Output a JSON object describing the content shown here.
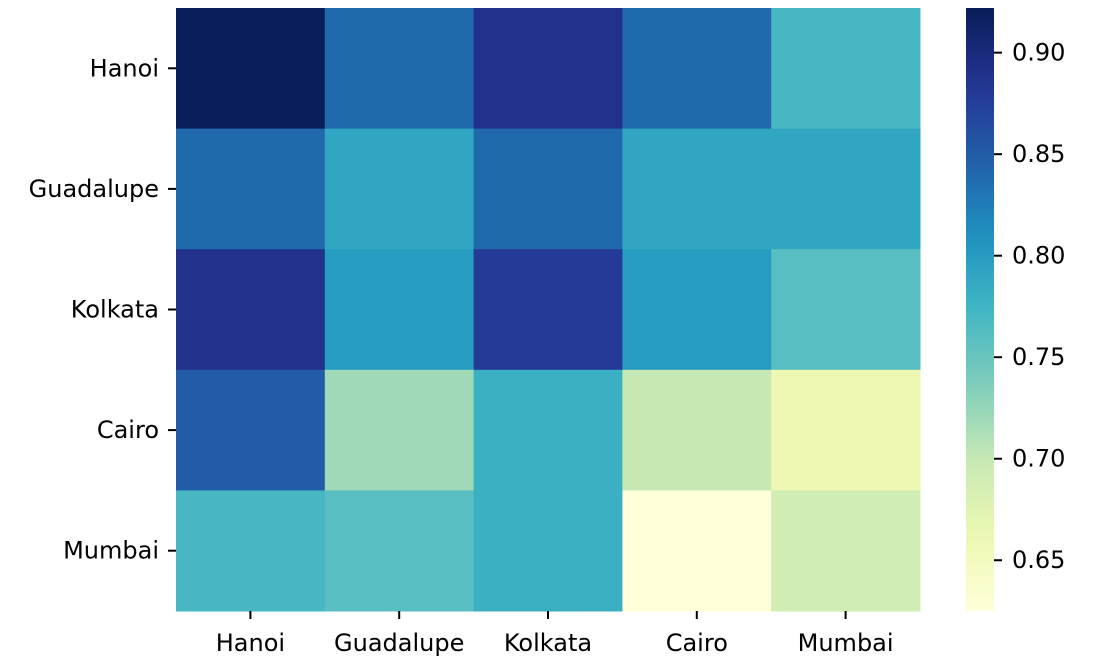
{
  "chart_data": {
    "type": "heatmap",
    "title": "",
    "xlabel": "",
    "ylabel": "",
    "x_categories": [
      "Hanoi",
      "Guadalupe",
      "Kolkata",
      "Cairo",
      "Mumbai"
    ],
    "y_categories": [
      "Hanoi",
      "Guadalupe",
      "Kolkata",
      "Cairo",
      "Mumbai"
    ],
    "values": [
      [
        0.92,
        0.84,
        0.89,
        0.84,
        0.77
      ],
      [
        0.84,
        0.79,
        0.84,
        0.79,
        0.79
      ],
      [
        0.89,
        0.8,
        0.88,
        0.8,
        0.76
      ],
      [
        0.85,
        0.72,
        0.78,
        0.7,
        0.66
      ],
      [
        0.77,
        0.76,
        0.78,
        0.625,
        0.69
      ]
    ],
    "colormap": "YlGnBu",
    "colorbar": {
      "range": [
        0.625,
        0.922
      ],
      "ticks": [
        0.65,
        0.7,
        0.75,
        0.8,
        0.85,
        0.9
      ],
      "tick_labels": [
        "0.65",
        "0.70",
        "0.75",
        "0.80",
        "0.85",
        "0.90"
      ]
    },
    "grid": false,
    "legend": "colorbar-right"
  }
}
